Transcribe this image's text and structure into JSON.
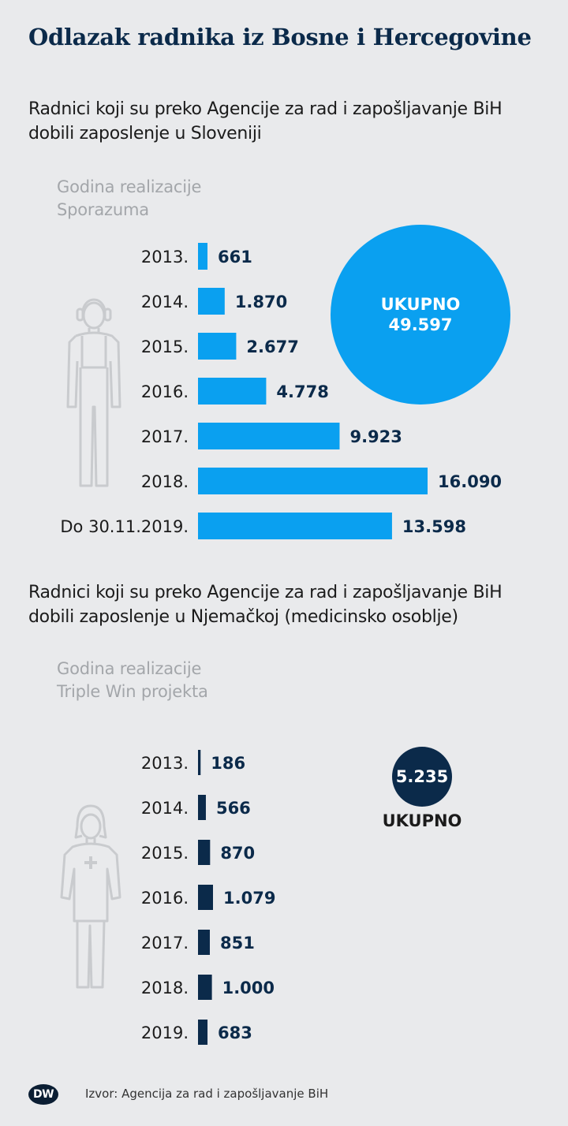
{
  "title": "Odlazak radnika iz Bosne i Hercegovine",
  "colors": {
    "slovenia": "#0aa0f0",
    "germany": "#0b2a4a",
    "background": "#e9eaec"
  },
  "chart_data": [
    {
      "type": "bar",
      "orientation": "horizontal",
      "subtitle": "Radnici koji su preko Agencije za rad i zapošljavanje BiH dobili zaposlenje u Sloveniji",
      "category_axis_label": "Godina realizacije Sporazuma",
      "categories": [
        "2013.",
        "2014.",
        "2015.",
        "2016.",
        "2017.",
        "2018.",
        "Do 30.11.2019."
      ],
      "values": [
        661,
        1870,
        2677,
        4778,
        9923,
        16090,
        13598
      ],
      "value_labels": [
        "661",
        "1.870",
        "2.677",
        "4.778",
        "9.923",
        "16.090",
        "13.598"
      ],
      "total": {
        "label": "UKUPNO",
        "value": "49.597"
      },
      "color": "#0aa0f0",
      "icon": "male-worker-icon"
    },
    {
      "type": "bar",
      "orientation": "horizontal",
      "subtitle": "Radnici koji su preko Agencije za rad i zapošljavanje BiH dobili zaposlenje u Njemačkoj (medicinsko osoblje)",
      "category_axis_label": "Godina realizacije Triple Win projekta",
      "categories": [
        "2013.",
        "2014.",
        "2015.",
        "2016.",
        "2017.",
        "2018.",
        "2019."
      ],
      "values": [
        186,
        566,
        870,
        1079,
        851,
        1000,
        683
      ],
      "value_labels": [
        "186",
        "566",
        "870",
        "1.079",
        "851",
        "1.000",
        "683"
      ],
      "total": {
        "label": "UKUPNO",
        "value": "5.235"
      },
      "color": "#0b2a4a",
      "icon": "nurse-icon"
    }
  ],
  "footer": {
    "logo_text": "DW",
    "source": "Izvor: Agencija za rad i zapošljavanje BiH"
  }
}
